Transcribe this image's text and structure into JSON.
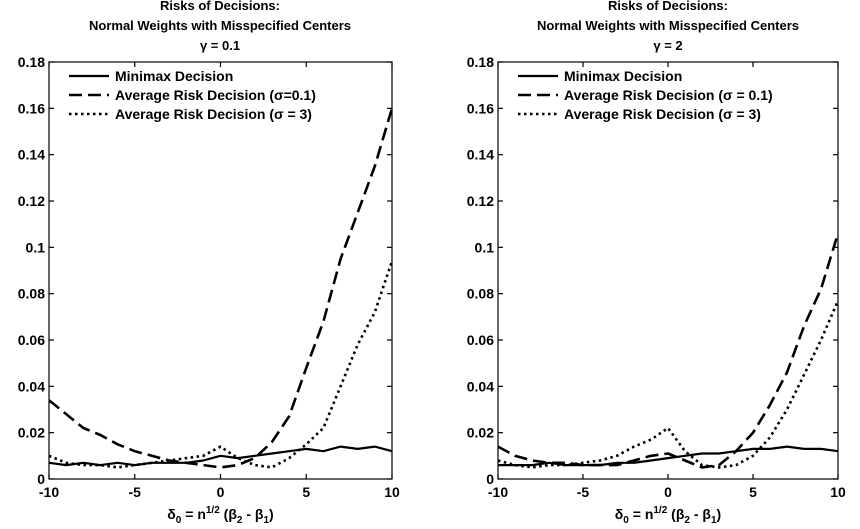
{
  "chart_data": [
    {
      "type": "line",
      "title": [
        "Risks of Decisions:",
        "Normal Weights with Misspecified Centers",
        "γ = 0.1"
      ],
      "xlabel": "δ0 = n1/2 (β2 - β1)",
      "xlabel_parts": {
        "delta": "δ",
        "delta_sub": "0",
        "mid": " = n",
        "exp": "1/2",
        "open": " (β",
        "sub2": "2",
        "minus": " - β",
        "sub1": "1",
        "close": ")"
      },
      "ylabel": "",
      "xlim": [
        -10,
        10
      ],
      "ylim": [
        0,
        0.18
      ],
      "xticks": [
        -10,
        -5,
        0,
        5,
        10
      ],
      "xtick_labels": [
        "-10",
        "-5",
        "0",
        "5",
        "10"
      ],
      "yticks": [
        0,
        0.02,
        0.04,
        0.06,
        0.08,
        0.1,
        0.12,
        0.14,
        0.16,
        0.18
      ],
      "ytick_labels": [
        "0",
        "0.02",
        "0.04",
        "0.06",
        "0.08",
        "0.1",
        "0.12",
        "0.14",
        "0.16",
        "0.18"
      ],
      "grid": false,
      "legend_position": "top-left",
      "series": [
        {
          "name": "Minimax Decision",
          "dash": "solid",
          "x": [
            -10,
            -9,
            -8,
            -7,
            -6,
            -5,
            -4,
            -3,
            -2,
            -1,
            0,
            1,
            2,
            3,
            4,
            5,
            6,
            7,
            8,
            9,
            10
          ],
          "y": [
            0.007,
            0.006,
            0.007,
            0.006,
            0.007,
            0.006,
            0.007,
            0.007,
            0.007,
            0.008,
            0.01,
            0.009,
            0.01,
            0.011,
            0.012,
            0.013,
            0.012,
            0.014,
            0.013,
            0.014,
            0.012
          ]
        },
        {
          "name": "Average Risk Decision (σ=0.1)",
          "dash": "dashed",
          "x": [
            -10,
            -9,
            -8,
            -7,
            -6,
            -5,
            -4,
            -3,
            -2,
            -1,
            0,
            1,
            2,
            3,
            4,
            5,
            6,
            7,
            8,
            9,
            10
          ],
          "y": [
            0.034,
            0.028,
            0.022,
            0.019,
            0.015,
            0.012,
            0.01,
            0.008,
            0.007,
            0.006,
            0.005,
            0.006,
            0.009,
            0.016,
            0.027,
            0.048,
            0.068,
            0.095,
            0.115,
            0.135,
            0.16
          ]
        },
        {
          "name": "Average Risk Decision (σ = 3)",
          "dash": "dotted",
          "x": [
            -10,
            -9,
            -8,
            -7,
            -6,
            -5,
            -4,
            -3,
            -2,
            -1,
            0,
            1,
            2,
            3,
            4,
            5,
            6,
            7,
            8,
            9,
            10
          ],
          "y": [
            0.01,
            0.007,
            0.006,
            0.006,
            0.005,
            0.006,
            0.007,
            0.008,
            0.009,
            0.01,
            0.014,
            0.009,
            0.006,
            0.005,
            0.009,
            0.015,
            0.022,
            0.04,
            0.058,
            0.072,
            0.094
          ]
        }
      ]
    },
    {
      "type": "line",
      "title": [
        "Risks of Decisions:",
        "Normal Weights with Misspecified Centers",
        "γ = 2"
      ],
      "xlabel": "δ0 = n1/2 (β2 - β1)",
      "xlabel_parts": {
        "delta": "δ",
        "delta_sub": "0",
        "mid": " = n",
        "exp": "1/2",
        "open": " (β",
        "sub2": "2",
        "minus": " - β",
        "sub1": "1",
        "close": ")"
      },
      "ylabel": "",
      "xlim": [
        -10,
        10
      ],
      "ylim": [
        0,
        0.18
      ],
      "xticks": [
        -10,
        -5,
        0,
        5,
        10
      ],
      "xtick_labels": [
        "-10",
        "-5",
        "0",
        "5",
        "10"
      ],
      "yticks": [
        0,
        0.02,
        0.04,
        0.06,
        0.08,
        0.1,
        0.12,
        0.14,
        0.16,
        0.18
      ],
      "ytick_labels": [
        "0",
        "0.02",
        "0.04",
        "0.06",
        "0.08",
        "0.1",
        "0.12",
        "0.14",
        "0.16",
        "0.18"
      ],
      "grid": false,
      "legend_position": "top-left",
      "series": [
        {
          "name": "Minimax Decision",
          "dash": "solid",
          "x": [
            -10,
            -9,
            -8,
            -7,
            -6,
            -5,
            -4,
            -3,
            -2,
            -1,
            0,
            1,
            2,
            3,
            4,
            5,
            6,
            7,
            8,
            9,
            10
          ],
          "y": [
            0.006,
            0.006,
            0.006,
            0.007,
            0.006,
            0.006,
            0.006,
            0.007,
            0.007,
            0.008,
            0.009,
            0.01,
            0.011,
            0.011,
            0.012,
            0.013,
            0.013,
            0.014,
            0.013,
            0.013,
            0.012
          ]
        },
        {
          "name": "Average Risk Decision (σ = 0.1)",
          "dash": "dashed",
          "x": [
            -10,
            -9,
            -8,
            -7,
            -6,
            -5,
            -4,
            -3,
            -2,
            -1,
            0,
            1,
            2,
            3,
            4,
            5,
            6,
            7,
            8,
            9,
            10
          ],
          "y": [
            0.014,
            0.01,
            0.008,
            0.007,
            0.007,
            0.006,
            0.006,
            0.006,
            0.008,
            0.01,
            0.011,
            0.008,
            0.005,
            0.006,
            0.012,
            0.02,
            0.032,
            0.046,
            0.066,
            0.082,
            0.106
          ]
        },
        {
          "name": "Average Risk Decision (σ = 3)",
          "dash": "dotted",
          "x": [
            -10,
            -9,
            -8,
            -7,
            -6,
            -5,
            -4,
            -3,
            -2,
            -1,
            0,
            1,
            2,
            3,
            4,
            5,
            6,
            7,
            8,
            9,
            10
          ],
          "y": [
            0.008,
            0.006,
            0.005,
            0.006,
            0.006,
            0.007,
            0.008,
            0.01,
            0.014,
            0.017,
            0.022,
            0.012,
            0.006,
            0.005,
            0.006,
            0.01,
            0.018,
            0.03,
            0.045,
            0.06,
            0.077
          ]
        }
      ]
    }
  ]
}
